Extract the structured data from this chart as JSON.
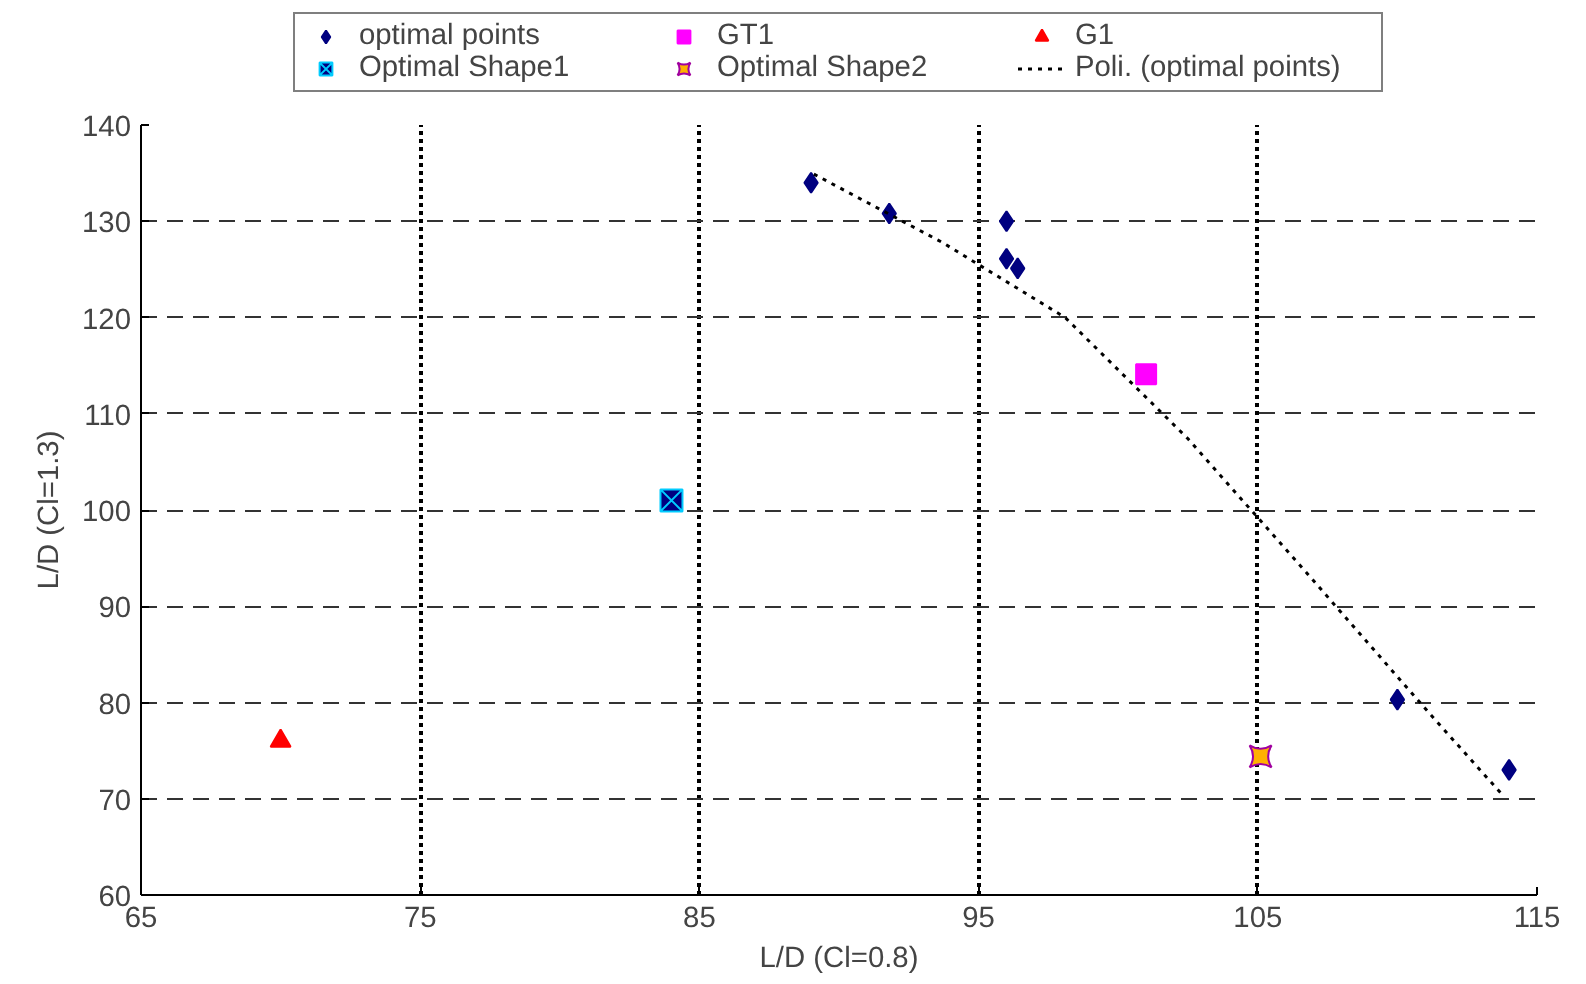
{
  "chart_data": {
    "type": "scatter",
    "xlabel": "L/D (Cl=0.8)",
    "ylabel": "L/D (Cl=1.3)",
    "xlim": [
      65,
      115
    ],
    "xticks": [
      65,
      75,
      85,
      95,
      105,
      115
    ],
    "ylim": [
      60,
      140
    ],
    "yticks": [
      60,
      70,
      80,
      90,
      100,
      110,
      120,
      130,
      140
    ],
    "grid": true,
    "legend": "top",
    "series": [
      {
        "name": "optimal points",
        "color": "#000080",
        "marker": "diamond",
        "x": [
          89.0,
          91.8,
          96.0,
          96.0,
          96.4,
          110.0,
          114.0
        ],
        "values": [
          134,
          130.8,
          130,
          126.1,
          125.1,
          80.3,
          73.0
        ]
      },
      {
        "name": "GT1",
        "color": "#ff00ff",
        "marker": "square",
        "x": [
          101.0
        ],
        "values": [
          114.1
        ]
      },
      {
        "name": "G1",
        "color": "#ff0000",
        "marker": "triangle",
        "x": [
          70.0
        ],
        "values": [
          76
        ]
      },
      {
        "name": "Optimal Shape1",
        "color": "#000080",
        "marker": "cross",
        "x": [
          84.0
        ],
        "values": [
          101
        ]
      },
      {
        "name": "Optimal Shape2",
        "color": "#ffb000",
        "marker": "star",
        "x": [
          105.1
        ],
        "values": [
          74.4
        ]
      },
      {
        "name": "Poli. (optimal points)",
        "type": "line",
        "color": "#000000",
        "line_style": "dotted",
        "marker": "none",
        "x": [
          89.1,
          93.7,
          98.1,
          102.5,
          106.8,
          111.2,
          113.7
        ],
        "values": [
          134.9,
          127.8,
          120,
          107.4,
          93.3,
          78.7,
          70.6
        ]
      }
    ]
  }
}
